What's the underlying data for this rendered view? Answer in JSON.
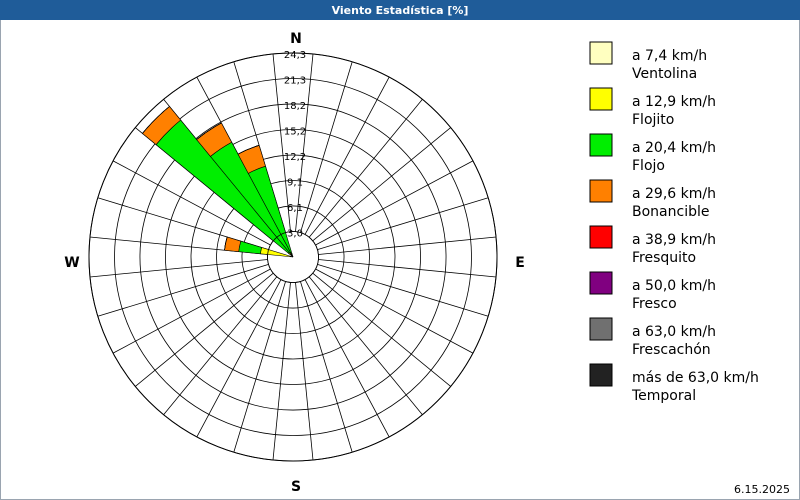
{
  "chart_data": {
    "type": "wind-rose",
    "title": "Viento Estadística [%]",
    "date": "6.15.2025",
    "categories": [
      "N",
      null,
      null,
      null,
      null,
      null,
      null,
      null,
      "E",
      null,
      null,
      null,
      null,
      null,
      null,
      null,
      "S",
      null,
      null,
      null,
      null,
      null,
      null,
      null,
      "W",
      null,
      null,
      null,
      null,
      null,
      null,
      null
    ],
    "rlim": [
      0,
      24.3
    ],
    "rticks": [
      {
        "value": 3.04,
        "label": "3,0"
      },
      {
        "value": 6.08,
        "label": "6,1"
      },
      {
        "value": 9.11,
        "label": "9,1"
      },
      {
        "value": 12.15,
        "label": "12,2"
      },
      {
        "value": 15.19,
        "label": "15,2"
      },
      {
        "value": 18.23,
        "label": "18,2"
      },
      {
        "value": 21.26,
        "label": "21,3"
      },
      {
        "value": 24.3,
        "label": "24,3"
      }
    ],
    "grid": true,
    "legend": "right",
    "series": [
      {
        "name": "a 7,4 km/h",
        "description": "Ventolina",
        "color": "#ffffc0",
        "values": [
          0,
          0,
          0,
          0,
          0,
          0,
          0,
          0,
          0,
          0,
          0,
          0,
          0,
          0,
          0,
          0,
          0,
          0,
          0,
          0,
          0,
          0,
          0,
          0,
          0,
          0.3,
          0,
          0,
          0.2,
          0.2,
          0.1,
          0
        ]
      },
      {
        "name": "a 12,9 km/h",
        "description": "Flojito",
        "color": "#ffff00",
        "values": [
          0,
          0,
          0,
          0,
          0,
          0,
          0,
          0,
          0,
          0,
          0,
          0,
          0,
          0,
          0,
          0,
          0,
          0,
          0,
          0,
          0,
          0,
          0,
          0,
          0,
          3.6,
          0,
          0,
          0.5,
          0.4,
          0.3,
          0
        ]
      },
      {
        "name": "a 20,4 km/h",
        "description": "Flojo",
        "color": "#00ee00",
        "values": [
          0,
          0,
          0,
          0,
          0,
          0,
          0,
          0,
          0,
          0,
          0,
          0,
          0,
          0,
          0,
          0,
          0,
          0,
          0,
          0,
          0,
          0,
          0,
          0,
          0,
          2.6,
          0,
          0,
          20.4,
          14.9,
          10.9,
          0
        ]
      },
      {
        "name": "a 29,6 km/h",
        "description": "Bonancible",
        "color": "#ff8000",
        "values": [
          0,
          0,
          0,
          0,
          0,
          0,
          0,
          0,
          0,
          0,
          0,
          0,
          0,
          0,
          0,
          0,
          0,
          0,
          0,
          0,
          0,
          0,
          0,
          0,
          0,
          1.7,
          0,
          0,
          2.1,
          2.6,
          2.6,
          0
        ]
      },
      {
        "name": "a 38,9 km/h",
        "description": "Fresquito",
        "color": "#ff0000",
        "values": [
          0,
          0,
          0,
          0,
          0,
          0,
          0,
          0,
          0,
          0,
          0,
          0,
          0,
          0,
          0,
          0,
          0,
          0,
          0,
          0,
          0,
          0,
          0,
          0,
          0,
          0,
          0,
          0,
          0,
          0,
          0,
          0
        ]
      },
      {
        "name": "a 50,0 km/h",
        "description": "Fresco",
        "color": "#800080",
        "values": [
          0,
          0,
          0,
          0,
          0,
          0,
          0,
          0,
          0,
          0,
          0,
          0,
          0,
          0,
          0,
          0,
          0,
          0,
          0,
          0,
          0,
          0,
          0,
          0,
          0,
          0,
          0,
          0,
          0,
          0,
          0,
          0
        ]
      },
      {
        "name": "a 63,0 km/h",
        "description": "Frescachón",
        "color": "#707070",
        "values": [
          0,
          0,
          0,
          0,
          0,
          0,
          0,
          0,
          0,
          0,
          0,
          0,
          0,
          0,
          0,
          0,
          0,
          0,
          0,
          0,
          0,
          0,
          0,
          0,
          0,
          0,
          0,
          0,
          0,
          0,
          0,
          0
        ]
      },
      {
        "name": "más de 63,0 km/h",
        "description": "Temporal",
        "color": "#222222",
        "values": [
          0,
          0,
          0,
          0,
          0,
          0,
          0,
          0,
          0,
          0,
          0,
          0,
          0,
          0,
          0,
          0,
          0,
          0,
          0,
          0,
          0,
          0,
          0,
          0,
          0,
          0,
          0,
          0,
          0,
          0,
          0,
          0
        ]
      }
    ]
  }
}
